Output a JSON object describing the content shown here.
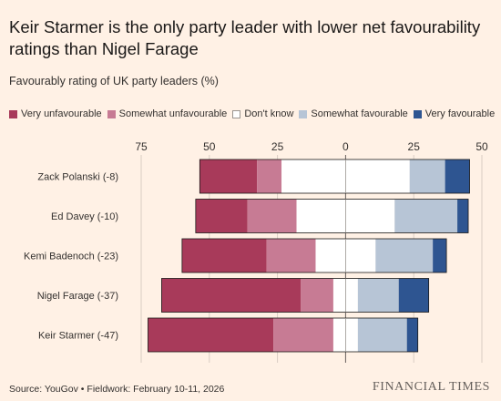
{
  "title": "Keir Starmer is the only party leader with lower net favourability ratings than Nigel Farage",
  "subtitle": "Favourably rating of UK party leaders (%)",
  "source": "Source: YouGov • Fieldwork: February 10-11, 2026",
  "brand": "FINANCIAL TIMES",
  "colors": {
    "very_unfavourable": "#a83a5a",
    "somewhat_unfavourable": "#c77b94",
    "dont_know": "#ffffff",
    "somewhat_favourable": "#b7c5d6",
    "very_favourable": "#2e5591",
    "background": "#fff1e5"
  },
  "chart_data": {
    "type": "bar",
    "orientation": "horizontal-diverging",
    "categories": [
      "Zack Polanski (-8)",
      "Ed Davey (-10)",
      "Kemi Badenoch (-23)",
      "Nigel Farage (-37)",
      "Keir Starmer (-47)"
    ],
    "series": [
      {
        "name": "Very unfavourable",
        "values": [
          21,
          19,
          31,
          51,
          46
        ]
      },
      {
        "name": "Somewhat unfavourable",
        "values": [
          9,
          18,
          18,
          12,
          22
        ]
      },
      {
        "name": "Don't know",
        "values": [
          47,
          36,
          22,
          9,
          9
        ]
      },
      {
        "name": "Somewhat favourable",
        "values": [
          13,
          23,
          21,
          15,
          18
        ]
      },
      {
        "name": "Very favourable",
        "values": [
          9,
          4,
          5,
          11,
          4
        ]
      }
    ],
    "xlim": [
      -75,
      50
    ],
    "xticks": [
      -75,
      -50,
      -25,
      0,
      25,
      50
    ],
    "xtick_labels": [
      "75",
      "50",
      "25",
      "0",
      "25",
      "50"
    ],
    "grid": true,
    "legend_position": "top-left"
  }
}
